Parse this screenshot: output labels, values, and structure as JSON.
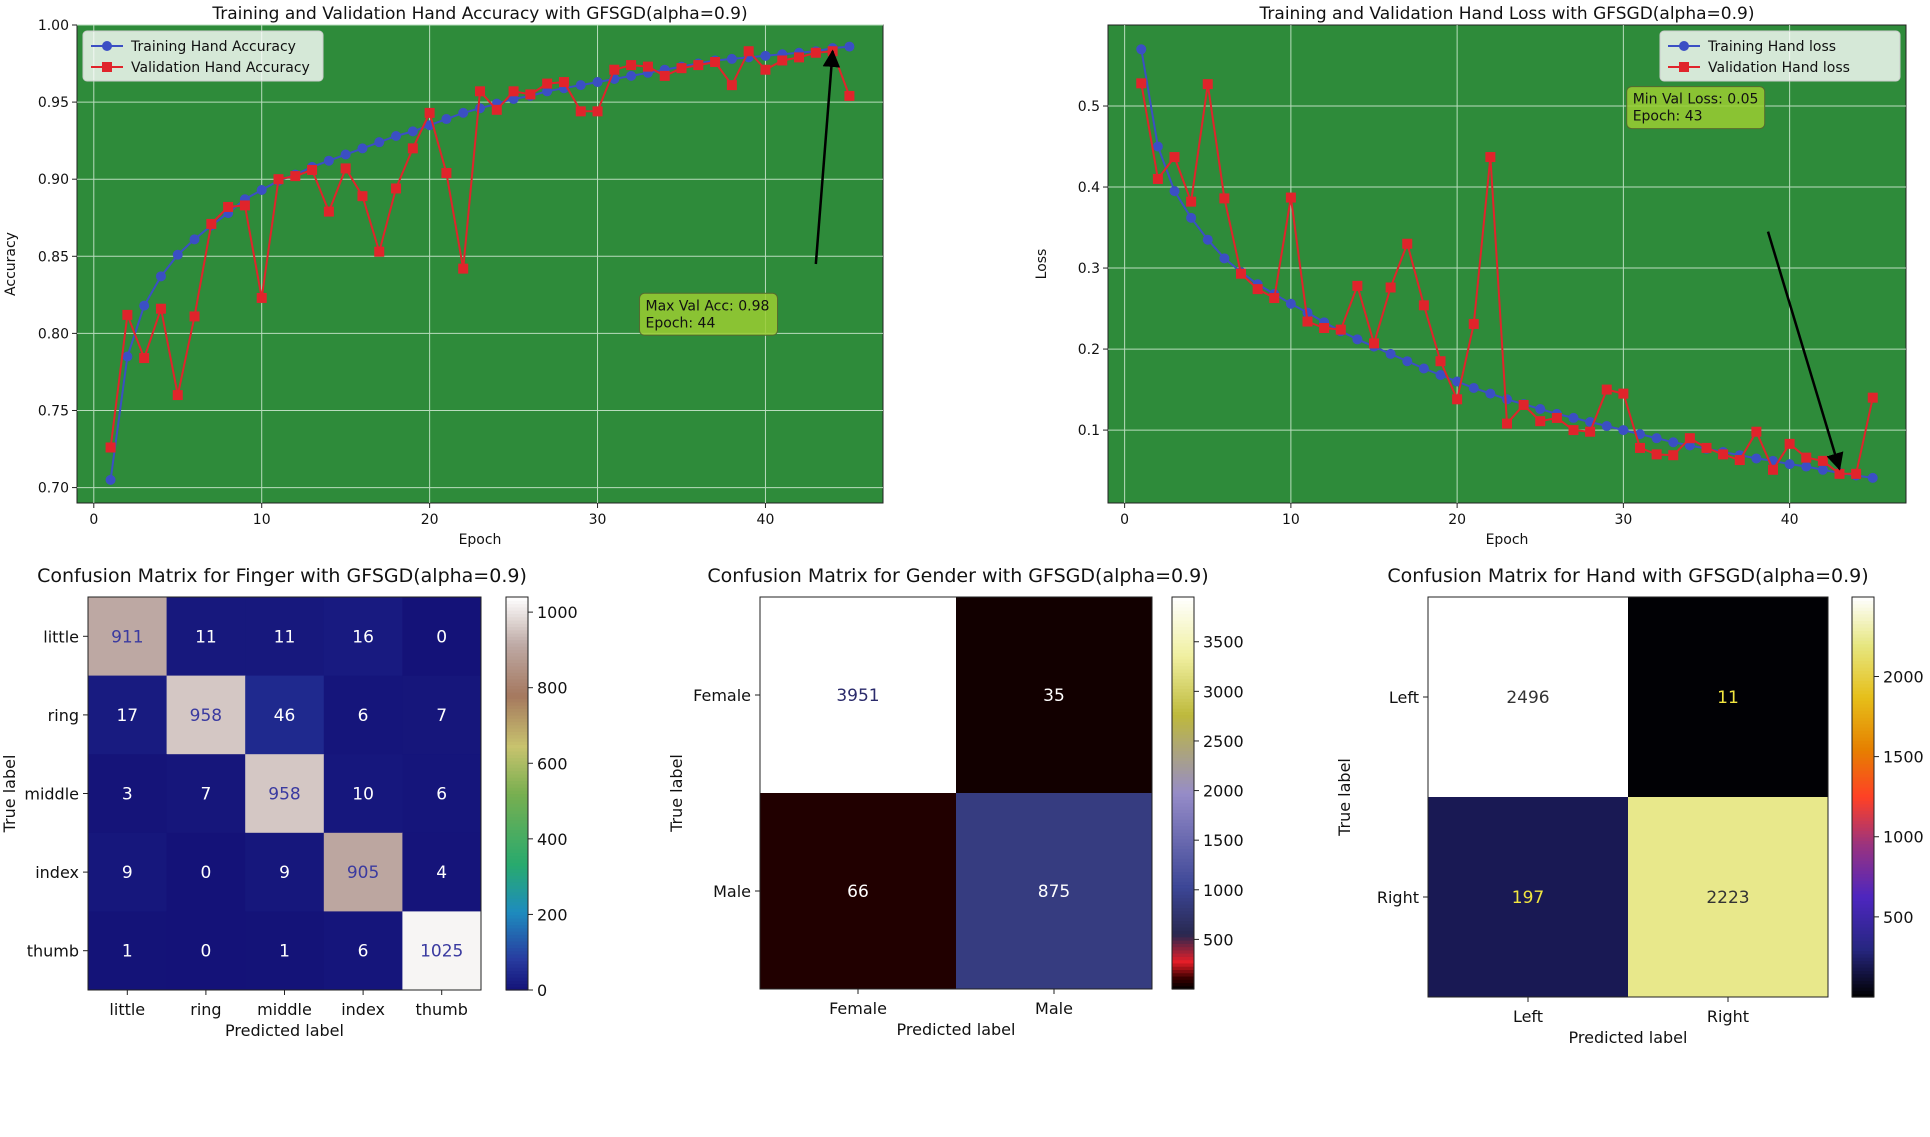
{
  "chart_data": [
    {
      "id": "acc",
      "type": "line",
      "title": "Training and Validation Hand Accuracy with GFSGD(alpha=0.9)",
      "xlabel": "Epoch",
      "ylabel": "Accuracy",
      "xlim": [
        -1,
        47
      ],
      "ylim": [
        0.69,
        1.0
      ],
      "xticks": [
        0,
        10,
        20,
        30,
        40
      ],
      "yticks": [
        0.7,
        0.75,
        0.8,
        0.85,
        0.9,
        0.95,
        1.0
      ],
      "ytick_labels": [
        "0.70",
        "0.75",
        "0.80",
        "0.85",
        "0.90",
        "0.95",
        "1.00"
      ],
      "legend_position": "top-left",
      "background": "#2e8b3a",
      "x": [
        1,
        2,
        3,
        4,
        5,
        6,
        7,
        8,
        9,
        10,
        11,
        12,
        13,
        14,
        15,
        16,
        17,
        18,
        19,
        20,
        21,
        22,
        23,
        24,
        25,
        26,
        27,
        28,
        29,
        30,
        31,
        32,
        33,
        34,
        35,
        36,
        37,
        38,
        39,
        40,
        41,
        42,
        43,
        44,
        45
      ],
      "series": [
        {
          "name": "Training Hand Accuracy",
          "color": "#3b4fc4",
          "marker": "circle",
          "values": [
            0.705,
            0.785,
            0.818,
            0.837,
            0.851,
            0.861,
            0.87,
            0.878,
            0.887,
            0.893,
            0.899,
            0.903,
            0.908,
            0.912,
            0.916,
            0.92,
            0.924,
            0.928,
            0.931,
            0.935,
            0.939,
            0.943,
            0.946,
            0.949,
            0.952,
            0.954,
            0.957,
            0.959,
            0.961,
            0.963,
            0.965,
            0.967,
            0.969,
            0.971,
            0.973,
            0.975,
            0.977,
            0.978,
            0.979,
            0.98,
            0.981,
            0.982,
            0.983,
            0.985,
            0.986
          ]
        },
        {
          "name": "Validation Hand Accuracy",
          "color": "#e0242b",
          "marker": "square",
          "values": [
            0.726,
            0.812,
            0.784,
            0.816,
            0.76,
            0.811,
            0.871,
            0.882,
            0.883,
            0.823,
            0.9,
            0.902,
            0.906,
            0.879,
            0.907,
            0.889,
            0.853,
            0.894,
            0.92,
            0.943,
            0.904,
            0.842,
            0.957,
            0.945,
            0.957,
            0.955,
            0.962,
            0.963,
            0.944,
            0.944,
            0.971,
            0.974,
            0.973,
            0.967,
            0.972,
            0.974,
            0.976,
            0.961,
            0.983,
            0.971,
            0.977,
            0.979,
            0.982,
            0.983,
            0.954
          ]
        }
      ],
      "annotation": {
        "lines": [
          "Max Val Acc: 0.98",
          "Epoch: 44"
        ],
        "text_x": 32.5,
        "text_y": 0.826,
        "arrow_from": [
          43,
          0.845
        ],
        "arrow_to": [
          44,
          0.983
        ]
      }
    },
    {
      "id": "loss",
      "type": "line",
      "title": "Training and Validation Hand Loss with GFSGD(alpha=0.9)",
      "xlabel": "Epoch",
      "ylabel": "Loss",
      "xlim": [
        -1,
        47
      ],
      "ylim": [
        0.01,
        0.6
      ],
      "xticks": [
        0,
        10,
        20,
        30,
        40
      ],
      "yticks": [
        0.1,
        0.2,
        0.3,
        0.4,
        0.5
      ],
      "ytick_labels": [
        "0.1",
        "0.2",
        "0.3",
        "0.4",
        "0.5"
      ],
      "legend_position": "top-right",
      "background": "#2e8b3a",
      "x": [
        1,
        2,
        3,
        4,
        5,
        6,
        7,
        8,
        9,
        10,
        11,
        12,
        13,
        14,
        15,
        16,
        17,
        18,
        19,
        20,
        21,
        22,
        23,
        24,
        25,
        26,
        27,
        28,
        29,
        30,
        31,
        32,
        33,
        34,
        35,
        36,
        37,
        38,
        39,
        40,
        41,
        42,
        43,
        44,
        45
      ],
      "series": [
        {
          "name": "Training Hand loss",
          "color": "#3b4fc4",
          "marker": "circle",
          "values": [
            0.57,
            0.45,
            0.395,
            0.362,
            0.335,
            0.312,
            0.295,
            0.28,
            0.268,
            0.256,
            0.245,
            0.233,
            0.222,
            0.212,
            0.203,
            0.194,
            0.185,
            0.176,
            0.168,
            0.16,
            0.152,
            0.145,
            0.138,
            0.132,
            0.126,
            0.12,
            0.115,
            0.11,
            0.105,
            0.1,
            0.095,
            0.09,
            0.085,
            0.081,
            0.077,
            0.073,
            0.069,
            0.065,
            0.062,
            0.058,
            0.055,
            0.051,
            0.047,
            0.044,
            0.041
          ]
        },
        {
          "name": "Validation Hand loss",
          "color": "#e0242b",
          "marker": "square",
          "values": [
            0.528,
            0.41,
            0.437,
            0.382,
            0.527,
            0.386,
            0.293,
            0.274,
            0.263,
            0.387,
            0.234,
            0.226,
            0.224,
            0.278,
            0.207,
            0.276,
            0.33,
            0.254,
            0.185,
            0.138,
            0.231,
            0.437,
            0.108,
            0.131,
            0.111,
            0.115,
            0.1,
            0.098,
            0.15,
            0.145,
            0.078,
            0.07,
            0.069,
            0.09,
            0.078,
            0.07,
            0.063,
            0.098,
            0.051,
            0.083,
            0.066,
            0.062,
            0.046,
            0.046,
            0.14
          ]
        }
      ],
      "annotation": {
        "lines": [
          "Min Val Loss: 0.05",
          "Epoch: 43"
        ],
        "text_x": 30.2,
        "text_y": 0.524,
        "arrow_from": [
          38.7,
          0.345
        ],
        "arrow_to": [
          43,
          0.052
        ]
      }
    },
    {
      "id": "cm-finger",
      "type": "heatmap",
      "title": "Confusion Matrix for Finger with GFSGD(alpha=0.9)",
      "xlabel": "Predicted label",
      "ylabel": "True label",
      "labels": [
        "little",
        "ring",
        "middle",
        "index",
        "thumb"
      ],
      "matrix": [
        [
          911,
          11,
          11,
          16,
          0
        ],
        [
          17,
          958,
          46,
          6,
          7
        ],
        [
          3,
          7,
          958,
          10,
          6
        ],
        [
          9,
          0,
          9,
          905,
          4
        ],
        [
          1,
          0,
          1,
          6,
          1025
        ]
      ],
      "colorbar_ticks": [
        0,
        200,
        400,
        600,
        800,
        1000
      ],
      "vmax": 1040,
      "colormap": "gist_earth"
    },
    {
      "id": "cm-gender",
      "type": "heatmap",
      "title": "Confusion Matrix for Gender with GFSGD(alpha=0.9)",
      "xlabel": "Predicted label",
      "ylabel": "True label",
      "labels": [
        "Female",
        "Male"
      ],
      "matrix": [
        [
          3951,
          35
        ],
        [
          66,
          875
        ]
      ],
      "colorbar_ticks": [
        500,
        1000,
        1500,
        2000,
        2500,
        3000,
        3500
      ],
      "vmax": 3951,
      "colormap": "gist_stern_r"
    },
    {
      "id": "cm-hand",
      "type": "heatmap",
      "title": "Confusion Matrix for Hand with GFSGD(alpha=0.9)",
      "xlabel": "Predicted label",
      "ylabel": "True label",
      "labels": [
        "Left",
        "Right"
      ],
      "matrix": [
        [
          2496,
          11
        ],
        [
          197,
          2223
        ]
      ],
      "colorbar_ticks": [
        500,
        1000,
        1500,
        2000
      ],
      "vmax": 2496,
      "colormap": "CMRmap"
    }
  ]
}
